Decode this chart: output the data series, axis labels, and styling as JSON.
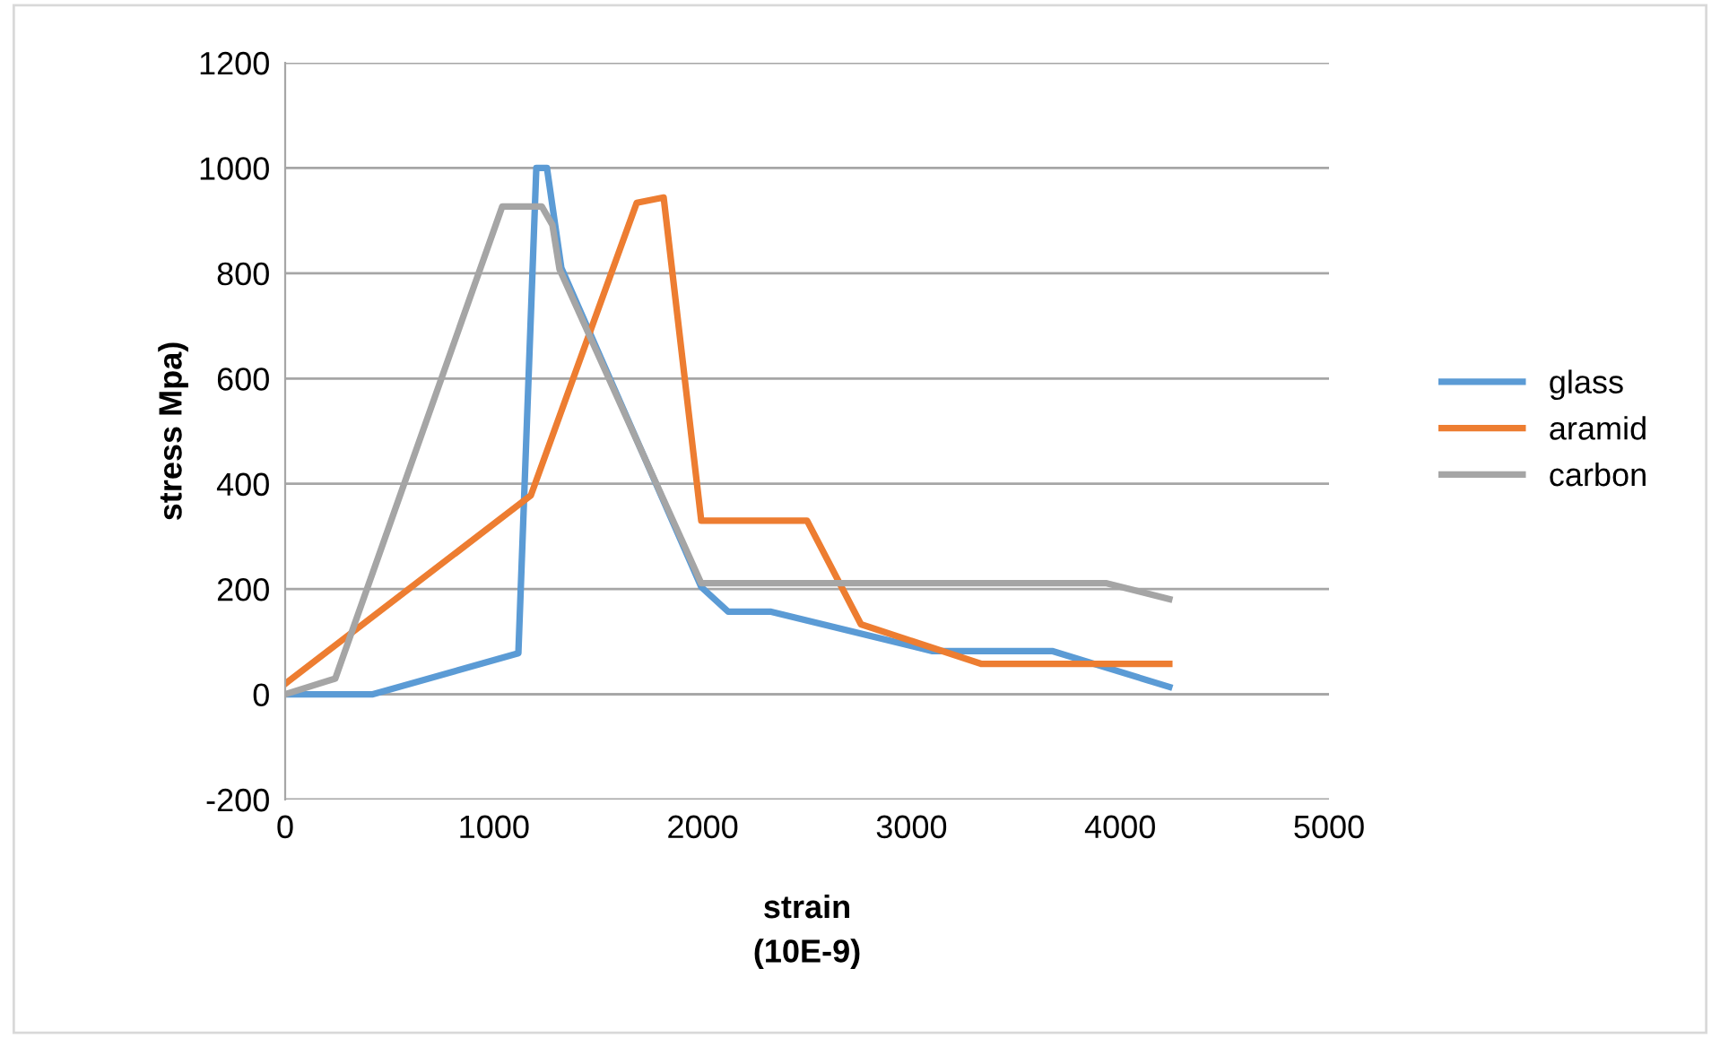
{
  "chart_data": {
    "type": "line",
    "xlabel": "strain\n(10E-9)",
    "ylabel": "stress Mpa)",
    "series": [
      {
        "name": "glass",
        "color": "#5b9bd5",
        "x": [
          0,
          420,
          1117,
          1203,
          1254,
          1323,
          1993,
          2122,
          2328,
          3101,
          3677,
          4235
        ],
        "values": [
          0,
          0,
          78,
          1000,
          1000,
          810,
          204,
          157,
          157,
          82,
          82,
          14
        ]
      },
      {
        "name": "aramid",
        "color": "#ed7d31",
        "x": [
          0,
          1177,
          1684,
          1813,
          1993,
          2500,
          2758,
          3333,
          4235
        ],
        "values": [
          20,
          378,
          934,
          944,
          330,
          330,
          133,
          58,
          58
        ]
      },
      {
        "name": "carbon",
        "color": "#a5a5a5",
        "x": [
          0,
          240,
          1040,
          1229,
          1280,
          1314,
          1993,
          3935,
          4235
        ],
        "values": [
          0,
          30,
          927,
          927,
          892,
          808,
          211,
          211,
          181
        ]
      }
    ],
    "xlim": [
      0,
      5000
    ],
    "xticks": [
      0,
      1000,
      2000,
      3000,
      4000,
      5000
    ],
    "ylim": [
      -200,
      1200
    ],
    "yticks": [
      -200,
      0,
      200,
      400,
      600,
      800,
      1000,
      1200
    ],
    "grid": "y",
    "legend": "right",
    "marker": "none",
    "line_style": "solid"
  }
}
